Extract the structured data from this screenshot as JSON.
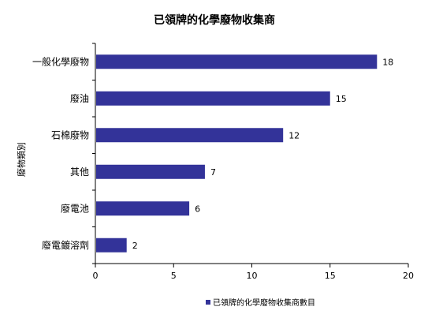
{
  "chart_data": {
    "type": "bar",
    "orientation": "horizontal",
    "title": "已領牌的化學廢物收集商",
    "ylabel": "廢物類別",
    "xlabel": "",
    "categories": [
      "一般化學廢物",
      "廢油",
      "石棉廢物",
      "其他",
      "廢電池",
      "廢電鍍溶劑"
    ],
    "series": [
      {
        "name": "已領牌的化學廢物收集商數目",
        "values": [
          18,
          15,
          12,
          7,
          6,
          2
        ],
        "color": "#333399"
      }
    ],
    "xlim": [
      0,
      20
    ],
    "xticks": [
      0,
      5,
      10,
      15,
      20
    ],
    "grid": false,
    "legend_position": "bottom"
  }
}
